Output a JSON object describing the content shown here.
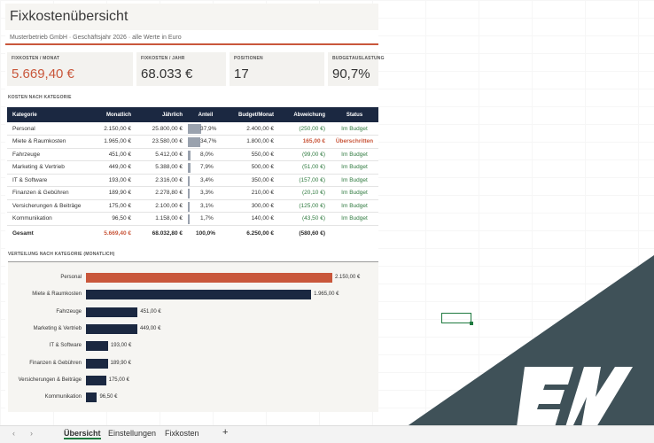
{
  "header": {
    "title": "Fixkostenübersicht",
    "subtitle": "Musterbetrieb GmbH · Geschäftsjahr 2026 · alle Werte in Euro"
  },
  "kpis": [
    {
      "label": "FIXKOSTEN / MONAT",
      "value": "5.669,40 €",
      "accent": "#c9573b"
    },
    {
      "label": "FIXKOSTEN / JAHR",
      "value": "68.033 €"
    },
    {
      "label": "POSITIONEN",
      "value": "17"
    },
    {
      "label": "BUDGETAUSLASTUNG",
      "value": "90,7%"
    }
  ],
  "table_section_label": "KOSTEN NACH KATEGORIE",
  "table": {
    "headers": [
      "Kategorie",
      "Monatlich",
      "Jährlich",
      "Anteil",
      "Budget/Monat",
      "Abweichung",
      "Status"
    ],
    "rows": [
      {
        "kategorie": "Personal",
        "monatlich": "2.150,00 €",
        "jaehrlich": "25.800,00 €",
        "anteil": "37,9%",
        "anteil_value": 37.9,
        "budget": "2.400,00 €",
        "abweichung": "(250,00 €)",
        "status": "Im Budget",
        "over": false
      },
      {
        "kategorie": "Miete & Raumkosten",
        "monatlich": "1.965,00 €",
        "jaehrlich": "23.580,00 €",
        "anteil": "34,7%",
        "anteil_value": 34.7,
        "budget": "1.800,00 €",
        "abweichung": "165,00 €",
        "status": "Überschritten",
        "over": true
      },
      {
        "kategorie": "Fahrzeuge",
        "monatlich": "451,00 €",
        "jaehrlich": "5.412,00 €",
        "anteil": "8,0%",
        "anteil_value": 8.0,
        "budget": "550,00 €",
        "abweichung": "(99,00 €)",
        "status": "Im Budget",
        "over": false
      },
      {
        "kategorie": "Marketing & Vertrieb",
        "monatlich": "449,00 €",
        "jaehrlich": "5.388,00 €",
        "anteil": "7,9%",
        "anteil_value": 7.9,
        "budget": "500,00 €",
        "abweichung": "(51,00 €)",
        "status": "Im Budget",
        "over": false
      },
      {
        "kategorie": "IT & Software",
        "monatlich": "193,00 €",
        "jaehrlich": "2.316,00 €",
        "anteil": "3,4%",
        "anteil_value": 3.4,
        "budget": "350,00 €",
        "abweichung": "(157,00 €)",
        "status": "Im Budget",
        "over": false
      },
      {
        "kategorie": "Finanzen & Gebühren",
        "monatlich": "189,90 €",
        "jaehrlich": "2.278,80 €",
        "anteil": "3,3%",
        "anteil_value": 3.3,
        "budget": "210,00 €",
        "abweichung": "(20,10 €)",
        "status": "Im Budget",
        "over": false
      },
      {
        "kategorie": "Versicherungen & Beiträge",
        "monatlich": "175,00 €",
        "jaehrlich": "2.100,00 €",
        "anteil": "3,1%",
        "anteil_value": 3.1,
        "budget": "300,00 €",
        "abweichung": "(125,00 €)",
        "status": "Im Budget",
        "over": false
      },
      {
        "kategorie": "Kommunikation",
        "monatlich": "96,50 €",
        "jaehrlich": "1.158,00 €",
        "anteil": "1,7%",
        "anteil_value": 1.7,
        "budget": "140,00 €",
        "abweichung": "(43,50 €)",
        "status": "Im Budget",
        "over": false
      }
    ],
    "total": {
      "label": "Gesamt",
      "monatlich": "5.669,40 €",
      "jaehrlich": "68.032,80 €",
      "anteil": "100,0%",
      "budget": "6.250,00 €",
      "abweichung": "(580,60 €)"
    }
  },
  "chart_section_label": "VERTEILUNG NACH KATEGORIE (MONATLICH)",
  "chart_data": {
    "type": "bar",
    "orientation": "horizontal",
    "categories": [
      "Personal",
      "Miete & Raumkosten",
      "Fahrzeuge",
      "Marketing & Vertrieb",
      "IT & Software",
      "Finanzen & Gebühren",
      "Versicherungen & Beiträge",
      "Kommunikation"
    ],
    "values": [
      2150.0,
      1965.0,
      451.0,
      449.0,
      193.0,
      189.9,
      175.0,
      96.5
    ],
    "data_labels": [
      "2.150,00 €",
      "1.965,00 €",
      "451,00 €",
      "449,00 €",
      "193,00 €",
      "189,90 €",
      "175,00 €",
      "96,50 €"
    ],
    "highlight_index": 0,
    "colors": {
      "highlight": "#c9573b",
      "default": "#1b2841"
    },
    "grid": false
  },
  "sheet_tabs": [
    {
      "label": "Übersicht",
      "active": true
    },
    {
      "label": "Einstellungen",
      "active": false
    },
    {
      "label": "Fixkosten",
      "active": false
    }
  ],
  "tab_controls": {
    "prev": "‹",
    "next": "›",
    "add": "+"
  },
  "colors": {
    "accent": "#c9573b",
    "navy": "#1b2841",
    "positive": "#2f7a3f",
    "logo_bg": "#3f5158"
  },
  "logo_text": "EW"
}
